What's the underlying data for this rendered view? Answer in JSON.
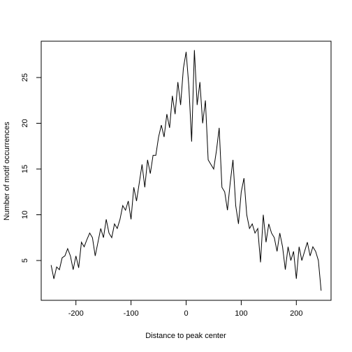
{
  "chart_data": {
    "type": "line",
    "x_label": "Distance to peak center",
    "y_label": "Number of motif occurrences",
    "x": [
      -245,
      -240,
      -235,
      -230,
      -225,
      -220,
      -215,
      -210,
      -205,
      -200,
      -195,
      -190,
      -185,
      -180,
      -175,
      -170,
      -165,
      -160,
      -155,
      -150,
      -145,
      -140,
      -135,
      -130,
      -125,
      -120,
      -115,
      -110,
      -105,
      -100,
      -95,
      -90,
      -85,
      -80,
      -75,
      -70,
      -65,
      -60,
      -55,
      -50,
      -45,
      -40,
      -35,
      -30,
      -25,
      -20,
      -15,
      -10,
      -5,
      0,
      5,
      10,
      15,
      20,
      25,
      30,
      35,
      40,
      45,
      50,
      55,
      60,
      65,
      70,
      75,
      80,
      85,
      90,
      95,
      100,
      105,
      110,
      115,
      120,
      125,
      130,
      135,
      140,
      145,
      150,
      155,
      160,
      165,
      170,
      175,
      180,
      185,
      190,
      195,
      200,
      205,
      210,
      215,
      220,
      225,
      230,
      235,
      240,
      245
    ],
    "series": [
      {
        "color": "#000000",
        "values": [
          4.5,
          3.0,
          4.3,
          4.0,
          5.3,
          5.5,
          6.3,
          5.5,
          4.0,
          5.5,
          4.2,
          7.0,
          6.5,
          7.3,
          8.0,
          7.5,
          5.5,
          7.0,
          8.5,
          7.5,
          9.5,
          8.0,
          7.5,
          9.0,
          8.5,
          9.5,
          11.0,
          10.5,
          11.5,
          9.5,
          13.0,
          11.5,
          13.5,
          15.5,
          13.0,
          16.0,
          14.5,
          16.5,
          16.5,
          18.5,
          19.8,
          18.5,
          21.0,
          19.5,
          23.0,
          21.0,
          24.5,
          22.0,
          26.0,
          27.8,
          24.0,
          18.0,
          28.0,
          22.0,
          24.5,
          20.0,
          22.5,
          16.0,
          15.5,
          15.0,
          17.0,
          19.5,
          13.0,
          12.5,
          10.5,
          13.5,
          16.0,
          11.0,
          9.0,
          12.5,
          14.0,
          10.0,
          8.5,
          9.0,
          8.0,
          8.5,
          4.8,
          10.0,
          7.0,
          9.0,
          8.0,
          7.5,
          6.0,
          8.0,
          6.5,
          4.0,
          6.5,
          5.0,
          6.0,
          3.0,
          6.5,
          5.0,
          6.0,
          7.0,
          5.5,
          6.5,
          6.0,
          5.0,
          1.7
        ]
      }
    ],
    "xlim": [
      -263,
      263
    ],
    "ylim": [
      0.65,
      28.97
    ],
    "xticks": [
      -200,
      -100,
      0,
      100,
      200
    ],
    "yticks": [
      5,
      10,
      15,
      20,
      25
    ]
  }
}
